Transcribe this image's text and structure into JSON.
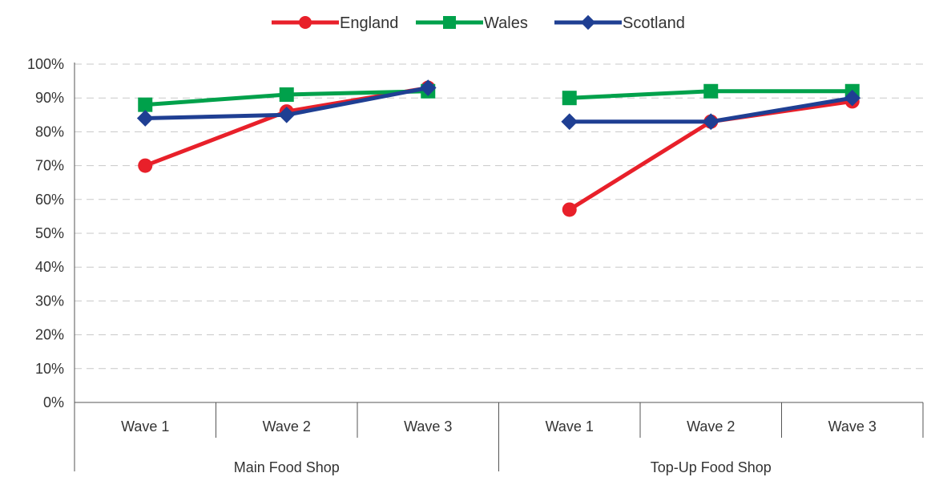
{
  "chart_data": {
    "type": "line",
    "groups": [
      {
        "label": "Main Food Shop",
        "categories": [
          "Wave 1",
          "Wave 2",
          "Wave 3"
        ]
      },
      {
        "label": "Top-Up Food Shop",
        "categories": [
          "Wave 1",
          "Wave 2",
          "Wave 3"
        ]
      }
    ],
    "y_ticks": [
      "0%",
      "10%",
      "20%",
      "30%",
      "40%",
      "50%",
      "60%",
      "70%",
      "80%",
      "90%",
      "100%"
    ],
    "ylim": [
      0,
      100
    ],
    "grid": true,
    "legend_position": "top-center",
    "series": [
      {
        "name": "England",
        "color": "#e8202a",
        "marker": "circle",
        "groups": [
          [
            70,
            86,
            93
          ],
          [
            57,
            83,
            89
          ]
        ]
      },
      {
        "name": "Wales",
        "color": "#00a14b",
        "marker": "square",
        "groups": [
          [
            88,
            91,
            92
          ],
          [
            90,
            92,
            92
          ]
        ]
      },
      {
        "name": "Scotland",
        "color": "#1f3f93",
        "marker": "diamond",
        "groups": [
          [
            84,
            85,
            93
          ],
          [
            83,
            83,
            90
          ]
        ]
      }
    ]
  }
}
